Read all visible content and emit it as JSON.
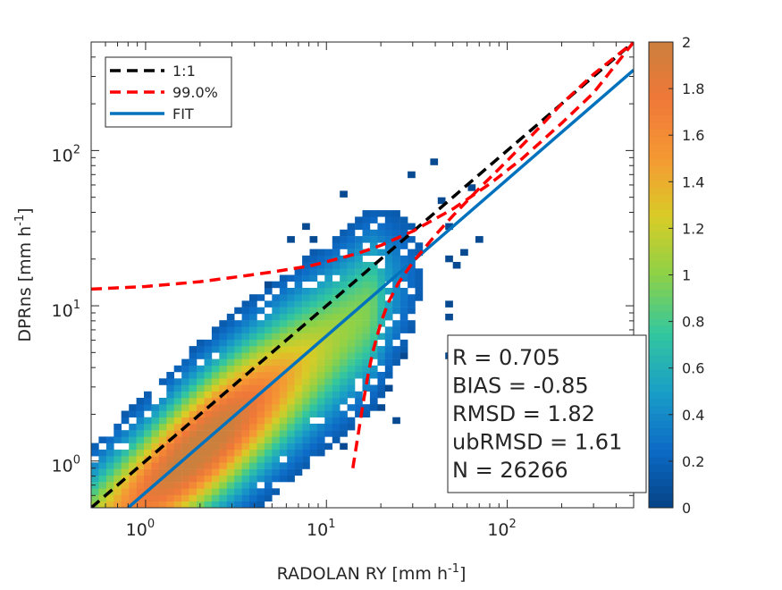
{
  "chart_data": {
    "type": "heatmap",
    "subtype": "log-log density scatter (2D histogram) with reference lines",
    "title": "",
    "xlabel": {
      "main": "RADOLAN RY [mm h",
      "sup": "-1",
      "close": "]"
    },
    "ylabel": {
      "main": "DPRns [mm h",
      "sup": "-1",
      "close": "]"
    },
    "x_scale": "log10",
    "y_scale": "log10",
    "xlim": [
      0.5,
      500
    ],
    "ylim": [
      0.5,
      500
    ],
    "x_ticks": [
      {
        "value": 1,
        "base": "10",
        "exp": "0"
      },
      {
        "value": 10,
        "base": "10",
        "exp": "1"
      },
      {
        "value": 100,
        "base": "10",
        "exp": "2"
      }
    ],
    "y_ticks": [
      {
        "value": 1,
        "base": "10",
        "exp": "0"
      },
      {
        "value": 10,
        "base": "10",
        "exp": "1"
      },
      {
        "value": 100,
        "base": "10",
        "exp": "2"
      }
    ],
    "grid": false,
    "legend_position": "top-left",
    "legend": [
      {
        "label": "1:1",
        "color": "#000000",
        "style": "dashed"
      },
      {
        "label": "99.0%",
        "color": "#ff0000",
        "style": "dashed"
      },
      {
        "label": "FIT",
        "color": "#0072bd",
        "style": "solid"
      }
    ],
    "series": [
      {
        "name": "1:1",
        "color": "#000000",
        "style": "dashed",
        "x": [
          0.5,
          500
        ],
        "y": [
          0.5,
          500
        ]
      },
      {
        "name": "FIT",
        "color": "#0072bd",
        "style": "solid",
        "x": [
          0.8,
          500
        ],
        "y": [
          0.5,
          330
        ]
      },
      {
        "name": "99.0%",
        "color": "#ff0000",
        "style": "dashed",
        "x": [
          0.5,
          1.0,
          2.0,
          3.0,
          5.0,
          8.0,
          10,
          15,
          20,
          30,
          50,
          80,
          120,
          200,
          300,
          500
        ],
        "y": [
          12.8,
          13.3,
          14.3,
          15.2,
          16.5,
          18.0,
          19.2,
          21.8,
          24.5,
          30.2,
          42,
          61,
          88,
          150,
          235,
          500
        ]
      },
      {
        "name": "99.0%",
        "color": "#ff0000",
        "style": "dashed",
        "x": [
          14,
          15,
          16,
          17,
          18,
          20,
          22,
          25,
          30,
          40,
          50,
          70,
          100,
          150,
          200,
          300,
          500
        ],
        "y": [
          0.9,
          1.5,
          2.4,
          3.6,
          5.0,
          7.8,
          10.5,
          14.0,
          19.0,
          28.5,
          38,
          57,
          86,
          140,
          200,
          310,
          500
        ]
      }
    ],
    "density": {
      "description": "Colored 2D histogram of log10 point density; bulk of points lies along the FIT line between x 0.5 and 20",
      "ridge_slope": 0.94,
      "ridge_intercept_log10": -0.196,
      "peak_x": 2.0
    },
    "stats": [
      "R = 0.705",
      "BIAS = -0.85",
      "RMSD = 1.82",
      "ubRMSD = 1.61",
      "N = 26266"
    ],
    "colorbar": {
      "min": 0,
      "max": 2,
      "ticks": [
        "0",
        "0.2",
        "0.4",
        "0.6",
        "0.8",
        "1",
        "1.2",
        "1.4",
        "1.6",
        "1.8",
        "2"
      ],
      "colormap": "parula"
    }
  }
}
